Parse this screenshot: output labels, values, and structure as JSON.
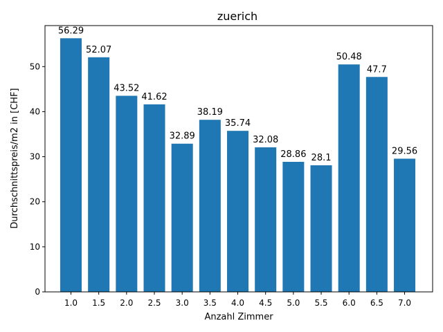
{
  "chart_data": {
    "type": "bar",
    "title": "zuerich",
    "xlabel": "Anzahl Zimmer",
    "ylabel": "Durchschnittspreis/m2 in [CHF]",
    "categories": [
      "1.0",
      "1.5",
      "2.0",
      "2.5",
      "3.0",
      "3.5",
      "4.0",
      "4.5",
      "5.0",
      "5.5",
      "6.0",
      "6.5",
      "7.0"
    ],
    "values": [
      56.29,
      52.07,
      43.52,
      41.62,
      32.89,
      38.19,
      35.74,
      32.08,
      28.86,
      28.1,
      50.48,
      47.7,
      29.56
    ],
    "data_labels": [
      "56.29",
      "52.07",
      "43.52",
      "41.62",
      "32.89",
      "38.19",
      "35.74",
      "32.08",
      "28.86",
      "28.1",
      "50.48",
      "47.7",
      "29.56"
    ],
    "yticks": [
      0,
      10,
      20,
      30,
      40,
      50
    ],
    "ylim": [
      0,
      59.1
    ],
    "bar_color": "#1f77b4",
    "grid": false,
    "legend": "none"
  }
}
